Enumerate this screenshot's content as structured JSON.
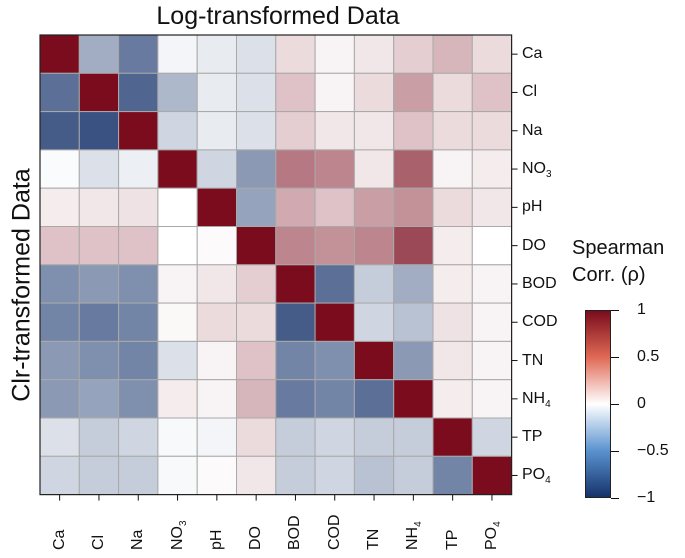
{
  "chart_data": {
    "type": "heatmap",
    "title": "Log-transformed Data",
    "ylabel": "Clr-transformed Data",
    "variables": [
      "Ca",
      "Cl",
      "Na",
      "NO3",
      "pH",
      "DO",
      "BOD",
      "COD",
      "TN",
      "NH4",
      "TP",
      "PO4"
    ],
    "matrix": [
      [
        1.0,
        -0.4,
        -0.65,
        -0.05,
        -0.1,
        -0.15,
        0.15,
        0.05,
        0.1,
        0.2,
        0.3,
        0.15
      ],
      [
        -0.7,
        1.0,
        -0.75,
        -0.35,
        -0.1,
        -0.15,
        0.25,
        0.05,
        0.15,
        0.4,
        0.15,
        0.25
      ],
      [
        -0.8,
        -0.85,
        1.0,
        -0.2,
        -0.1,
        -0.15,
        0.2,
        0.1,
        0.1,
        0.25,
        0.15,
        0.15
      ],
      [
        -0.02,
        -0.15,
        -0.08,
        1.0,
        -0.2,
        -0.5,
        0.55,
        0.5,
        0.1,
        0.65,
        0.05,
        0.08
      ],
      [
        0.08,
        0.1,
        0.12,
        0.0,
        1.0,
        -0.45,
        0.35,
        0.25,
        0.4,
        0.45,
        0.15,
        0.1
      ],
      [
        0.25,
        0.25,
        0.25,
        0.0,
        0.02,
        1.0,
        0.5,
        0.45,
        0.5,
        0.75,
        0.08,
        0.0
      ],
      [
        -0.55,
        -0.5,
        -0.55,
        0.05,
        0.1,
        0.2,
        1.0,
        -0.7,
        -0.25,
        -0.4,
        0.08,
        0.05
      ],
      [
        -0.6,
        -0.65,
        -0.6,
        0.03,
        0.15,
        0.15,
        -0.8,
        1.0,
        -0.2,
        -0.3,
        0.12,
        0.05
      ],
      [
        -0.5,
        -0.55,
        -0.6,
        -0.15,
        0.05,
        0.25,
        -0.6,
        -0.55,
        1.0,
        -0.5,
        0.1,
        0.05
      ],
      [
        -0.5,
        -0.45,
        -0.55,
        0.08,
        0.05,
        0.3,
        -0.65,
        -0.6,
        -0.7,
        1.0,
        0.08,
        0.05
      ],
      [
        -0.15,
        -0.25,
        -0.2,
        -0.03,
        -0.05,
        0.15,
        -0.25,
        -0.2,
        -0.25,
        -0.25,
        1.0,
        -0.2
      ],
      [
        -0.2,
        -0.25,
        -0.25,
        -0.03,
        0.02,
        0.1,
        -0.25,
        -0.2,
        -0.3,
        -0.25,
        -0.6,
        1.0
      ]
    ],
    "colorbar": {
      "title_line1": "Spearman",
      "title_line2": "Corr. (ρ)",
      "range": [
        -1,
        1
      ],
      "ticks": [
        "1",
        "0.5",
        "0",
        "−0.5",
        "−1"
      ],
      "low_color": "#16336b",
      "mid_color": "#ffffff",
      "high_color": "#7a0c1d"
    }
  },
  "labels": {
    "rows": [
      {
        "base": "Ca",
        "sub": ""
      },
      {
        "base": "Cl",
        "sub": ""
      },
      {
        "base": "Na",
        "sub": ""
      },
      {
        "base": "NO",
        "sub": "3"
      },
      {
        "base": "pH",
        "sub": ""
      },
      {
        "base": "DO",
        "sub": ""
      },
      {
        "base": "BOD",
        "sub": ""
      },
      {
        "base": "COD",
        "sub": ""
      },
      {
        "base": "TN",
        "sub": ""
      },
      {
        "base": "NH",
        "sub": "4"
      },
      {
        "base": "TP",
        "sub": ""
      },
      {
        "base": "PO",
        "sub": "4"
      }
    ]
  }
}
